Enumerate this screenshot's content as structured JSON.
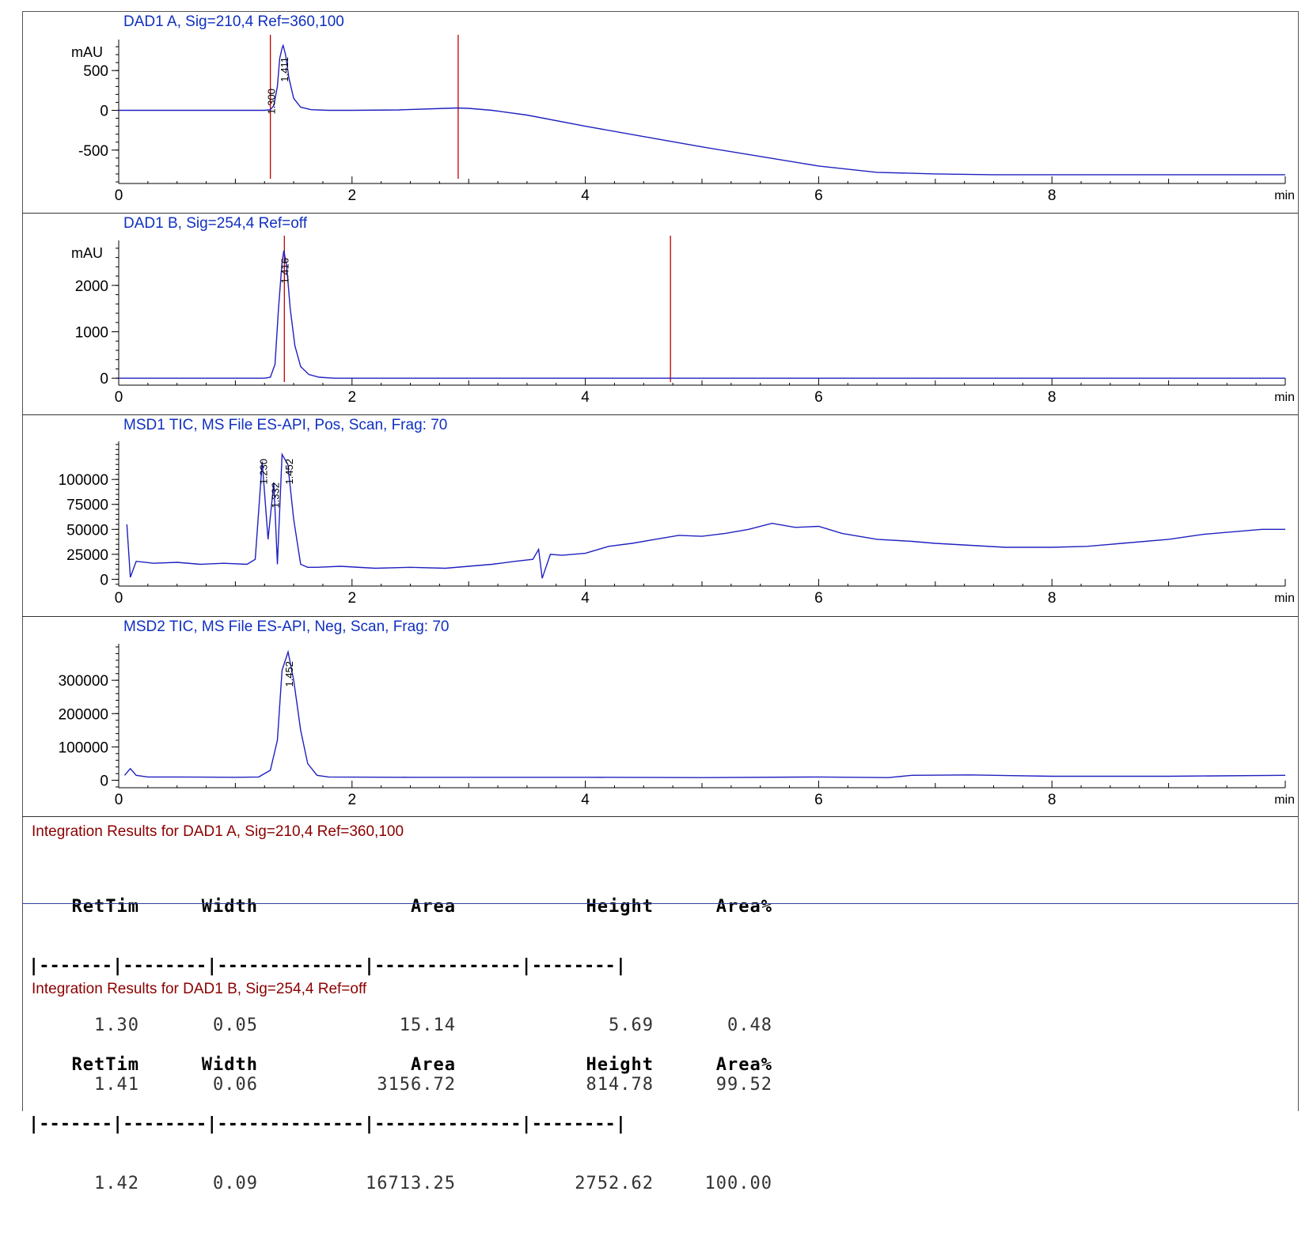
{
  "chart_data": [
    {
      "type": "line",
      "title": "DAD1 A, Sig=210,4 Ref=360,100",
      "ylabel": "mAU",
      "xlabel": "min",
      "xlim": [
        0,
        10
      ],
      "ylim": [
        -900,
        850
      ],
      "xticks": [
        0,
        2,
        4,
        6,
        8
      ],
      "yticks": [
        -500,
        0,
        500
      ],
      "peak_labels": [
        {
          "x": 1.3,
          "label": "1.300"
        },
        {
          "x": 1.411,
          "label": "1.411"
        }
      ],
      "markers": [
        1.3,
        2.91
      ],
      "series": [
        {
          "x": [
            0,
            1.25,
            1.3,
            1.33,
            1.36,
            1.38,
            1.4,
            1.41,
            1.43,
            1.46,
            1.5,
            1.56,
            1.65,
            1.8,
            2.0,
            2.4,
            2.7,
            2.9,
            3.0,
            3.2,
            3.5,
            4.0,
            4.5,
            5.0,
            5.5,
            6.0,
            6.5,
            7.0,
            7.5,
            8.0,
            9.0,
            10.0
          ],
          "y": [
            0,
            0,
            8,
            60,
            300,
            650,
            780,
            814,
            700,
            400,
            150,
            40,
            8,
            0,
            0,
            5,
            20,
            30,
            25,
            0,
            -60,
            -200,
            -330,
            -460,
            -580,
            -700,
            -780,
            -800,
            -810,
            -810,
            -810,
            -810
          ]
        }
      ]
    },
    {
      "type": "line",
      "title": "DAD1 B, Sig=254,4 Ref=off",
      "ylabel": "mAU",
      "xlabel": "min",
      "xlim": [
        0,
        10
      ],
      "ylim": [
        -150,
        2900
      ],
      "xticks": [
        0,
        2,
        4,
        6,
        8
      ],
      "yticks": [
        0,
        1000,
        2000
      ],
      "peak_labels": [
        {
          "x": 1.416,
          "label": "1.416"
        }
      ],
      "markers": [
        1.42,
        4.73
      ],
      "series": [
        {
          "x": [
            0,
            1.25,
            1.3,
            1.34,
            1.37,
            1.4,
            1.416,
            1.44,
            1.47,
            1.51,
            1.56,
            1.63,
            1.72,
            1.85,
            2.2,
            10.0
          ],
          "y": [
            0,
            0,
            20,
            300,
            1500,
            2500,
            2752,
            2400,
            1500,
            700,
            250,
            80,
            20,
            0,
            0,
            0
          ]
        }
      ]
    },
    {
      "type": "line",
      "title": "MSD1 TIC, MS File    ES-API, Pos, Scan, Frag: 70",
      "xlabel": "min",
      "xlim": [
        0,
        10
      ],
      "ylim": [
        -6000,
        135000
      ],
      "xticks": [
        0,
        2,
        4,
        6,
        8
      ],
      "yticks": [
        0,
        25000,
        50000,
        75000,
        100000
      ],
      "peak_labels": [
        {
          "x": 1.23,
          "label": "1.230"
        },
        {
          "x": 1.332,
          "label": "1.332"
        },
        {
          "x": 1.452,
          "label": "1.452"
        }
      ],
      "series": [
        {
          "x": [
            0.07,
            0.1,
            0.15,
            0.3,
            0.5,
            0.7,
            0.9,
            1.1,
            1.17,
            1.23,
            1.28,
            1.33,
            1.36,
            1.4,
            1.45,
            1.5,
            1.56,
            1.62,
            1.7,
            1.9,
            2.2,
            2.5,
            2.8,
            3.0,
            3.2,
            3.4,
            3.55,
            3.6,
            3.63,
            3.7,
            3.8,
            4.0,
            4.2,
            4.4,
            4.6,
            4.8,
            5.0,
            5.2,
            5.4,
            5.6,
            5.8,
            6.0,
            6.2,
            6.5,
            6.8,
            7.0,
            7.3,
            7.6,
            8.0,
            8.3,
            8.6,
            9.0,
            9.3,
            9.6,
            9.8,
            10.0
          ],
          "y": [
            55000,
            2000,
            18000,
            16000,
            17000,
            15000,
            16000,
            15000,
            20000,
            118000,
            40000,
            97000,
            15000,
            125000,
            115000,
            60000,
            15000,
            12000,
            12000,
            13000,
            11000,
            12000,
            11000,
            13000,
            15000,
            18000,
            20000,
            30000,
            1000,
            25000,
            24000,
            26000,
            33000,
            36000,
            40000,
            44000,
            43000,
            46000,
            50000,
            56000,
            52000,
            53000,
            46000,
            40000,
            38000,
            36000,
            34000,
            32000,
            32000,
            33000,
            36000,
            40000,
            45000,
            48000,
            50000,
            50000
          ]
        }
      ]
    },
    {
      "type": "line",
      "title": "MSD2 TIC, MS File    ES-API, Neg, Scan, Frag: 70",
      "xlabel": "min",
      "xlim": [
        0,
        10
      ],
      "ylim": [
        -20000,
        400000
      ],
      "xticks": [
        0,
        2,
        4,
        6,
        8
      ],
      "yticks": [
        0,
        100000,
        200000,
        300000
      ],
      "peak_labels": [
        {
          "x": 1.452,
          "label": "1.452"
        }
      ],
      "series": [
        {
          "x": [
            0.05,
            0.1,
            0.15,
            0.25,
            0.5,
            1.0,
            1.2,
            1.3,
            1.36,
            1.4,
            1.452,
            1.5,
            1.56,
            1.62,
            1.7,
            1.8,
            2.5,
            4.0,
            5.0,
            6.0,
            6.6,
            6.8,
            7.3,
            8.0,
            9.0,
            10.0
          ],
          "y": [
            15000,
            35000,
            15000,
            10000,
            10000,
            9000,
            10000,
            30000,
            120000,
            330000,
            385000,
            300000,
            150000,
            50000,
            15000,
            10000,
            9000,
            9000,
            8000,
            10000,
            8000,
            15000,
            16000,
            12000,
            12000,
            15000
          ]
        }
      ]
    }
  ],
  "results": [
    {
      "title": "Integration Results for DAD1 A, Sig=210,4 Ref=360,100",
      "headers": [
        "RetTim",
        "Width",
        "Area",
        "Height",
        "Area%"
      ],
      "dashes": "|-------|--------|--------------|--------------|--------|",
      "rows": [
        [
          "1.30",
          "0.05",
          "15.14",
          "5.69",
          "0.48"
        ],
        [
          "1.41",
          "0.06",
          "3156.72",
          "814.78",
          "99.52"
        ]
      ]
    },
    {
      "title": "Integration Results for DAD1 B, Sig=254,4 Ref=off",
      "headers": [
        "RetTim",
        "Width",
        "Area",
        "Height",
        "Area%"
      ],
      "dashes": "|-------|--------|--------------|--------------|--------|",
      "rows": [
        [
          "1.42",
          "0.09",
          "16713.25",
          "2752.62",
          "100.00"
        ]
      ]
    }
  ],
  "colors": {
    "trace": "#2020c0",
    "baseline": "#e000e0",
    "marker": "#c00000",
    "title": "#1030c0",
    "results_title": "#8b0000"
  }
}
